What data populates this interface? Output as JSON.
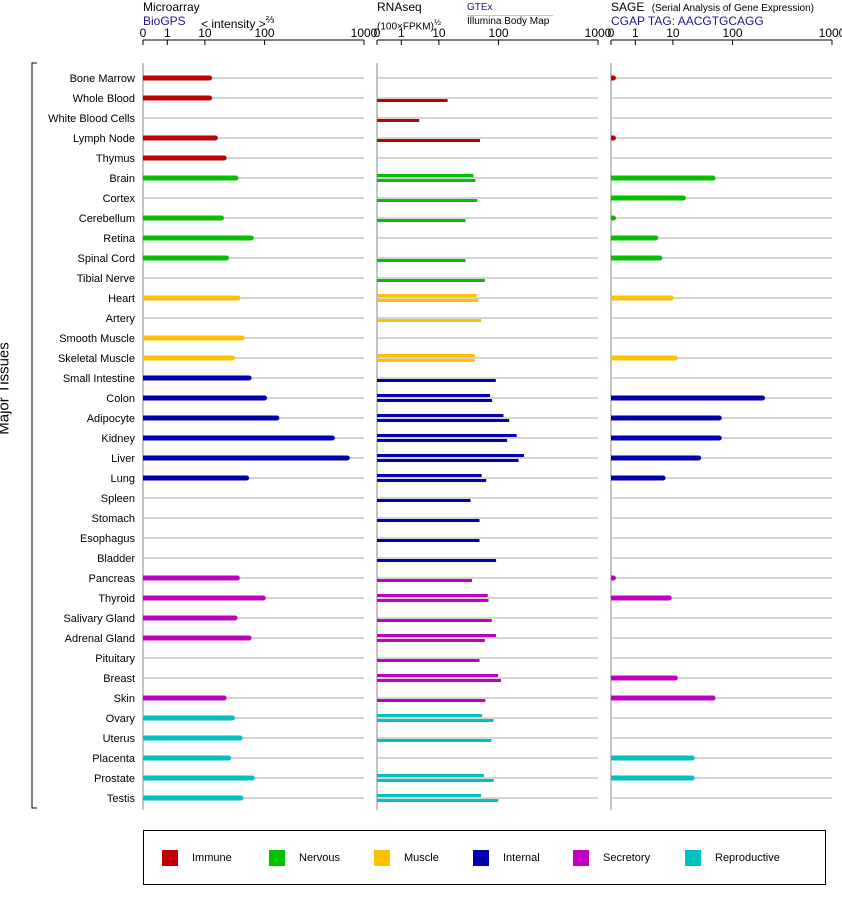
{
  "headers": {
    "microarray": {
      "title": "Microarray",
      "source": "BioGPS",
      "metric_prefix": "< intensity >",
      "metric_exp": "⅔"
    },
    "rnaseq": {
      "title": "RNAseq",
      "source": "GTEx",
      "metric_prefix": "(100×FPKM)",
      "metric_exp": "½",
      "source2": "Illumina Body Map"
    },
    "sage": {
      "title": "SAGE",
      "subtitle": "(Serial Analysis of Gene Expression)",
      "source": "CGAP",
      "tag": "TAG: AACGTGCAGG"
    }
  },
  "y_axis_label": "Major Tissues",
  "colors": {
    "Immune": "#c00000",
    "Nervous": "#00c000",
    "Muscle": "#ffc000",
    "Internal": "#0000b0",
    "Secretory": "#c000c0",
    "Reproductive": "#00c0c0"
  },
  "legend": [
    {
      "label": "Immune",
      "color": "#c00000"
    },
    {
      "label": "Nervous",
      "color": "#00c000"
    },
    {
      "label": "Muscle",
      "color": "#ffc000"
    },
    {
      "label": "Internal",
      "color": "#0000b0"
    },
    {
      "label": "Secretory",
      "color": "#c000c0"
    },
    {
      "label": "Reproductive",
      "color": "#00c0c0"
    }
  ],
  "chart_data": {
    "type": "bar",
    "orientation": "horizontal",
    "x_ticks": [
      "0",
      "1",
      "10",
      "100",
      "1000"
    ],
    "tick_values": [
      0,
      1,
      10,
      100,
      1000
    ],
    "xlim": [
      0,
      1000
    ],
    "panels": [
      "Microarray",
      "RNAseq",
      "SAGE"
    ],
    "tissues": [
      {
        "name": "Bone Marrow",
        "group": "Immune",
        "microarray": [
          12
        ],
        "rnaseq": [],
        "sage": [
          0.1
        ]
      },
      {
        "name": "Whole Blood",
        "group": "Immune",
        "microarray": [
          12
        ],
        "rnaseq": [
          14
        ],
        "sage": []
      },
      {
        "name": "White Blood Cells",
        "group": "Immune",
        "microarray": [],
        "rnaseq": [
          3
        ],
        "sage": []
      },
      {
        "name": "Lymph Node",
        "group": "Immune",
        "microarray": [
          15
        ],
        "rnaseq": [
          49
        ],
        "sage": [
          0.1
        ]
      },
      {
        "name": "Thymus",
        "group": "Immune",
        "microarray": [
          21
        ],
        "rnaseq": [],
        "sage": []
      },
      {
        "name": "Brain",
        "group": "Nervous",
        "microarray": [
          33
        ],
        "rnaseq": [
          38,
          41
        ],
        "sage": [
          47
        ]
      },
      {
        "name": "Cortex",
        "group": "Nervous",
        "microarray": [],
        "rnaseq": [
          44
        ],
        "sage": [
          15
        ]
      },
      {
        "name": "Cerebellum",
        "group": "Nervous",
        "microarray": [
          19
        ],
        "rnaseq": [
          28
        ],
        "sage": [
          0.1
        ]
      },
      {
        "name": "Retina",
        "group": "Nervous",
        "microarray": [
          60
        ],
        "rnaseq": [],
        "sage": [
          3.5
        ]
      },
      {
        "name": "Spinal Cord",
        "group": "Nervous",
        "microarray": [
          23
        ],
        "rnaseq": [
          28
        ],
        "sage": [
          4.5
        ]
      },
      {
        "name": "Tibial Nerve",
        "group": "Nervous",
        "microarray": [],
        "rnaseq": [
          59
        ],
        "sage": []
      },
      {
        "name": "Heart",
        "group": "Muscle",
        "microarray": [
          36
        ],
        "rnaseq": [
          43,
          46
        ],
        "sage": [
          9
        ]
      },
      {
        "name": "Artery",
        "group": "Muscle",
        "microarray": [],
        "rnaseq": [
          51
        ],
        "sage": []
      },
      {
        "name": "Smooth Muscle",
        "group": "Muscle",
        "microarray": [
          42
        ],
        "rnaseq": [],
        "sage": []
      },
      {
        "name": "Skeletal Muscle",
        "group": "Muscle",
        "microarray": [
          29
        ],
        "rnaseq": [
          40,
          40
        ],
        "sage": [
          11
        ]
      },
      {
        "name": "Small Intestine",
        "group": "Internal",
        "microarray": [
          55
        ],
        "rnaseq": [
          90
        ],
        "sage": []
      },
      {
        "name": "Colon",
        "group": "Internal",
        "microarray": [
          100
        ],
        "rnaseq": [
          72,
          78
        ],
        "sage": [
          200
        ]
      },
      {
        "name": "Adipocyte",
        "group": "Internal",
        "microarray": [
          133
        ],
        "rnaseq": [
          112,
          128
        ],
        "sage": [
          60
        ]
      },
      {
        "name": "Kidney",
        "group": "Internal",
        "microarray": [
          480
        ],
        "rnaseq": [
          152,
          122
        ],
        "sage": [
          60
        ]
      },
      {
        "name": "Liver",
        "group": "Internal",
        "microarray": [
          680
        ],
        "rnaseq": [
          180,
          159
        ],
        "sage": [
          27
        ]
      },
      {
        "name": "Lung",
        "group": "Internal",
        "microarray": [
          50
        ],
        "rnaseq": [
          52,
          62
        ],
        "sage": [
          5.5
        ]
      },
      {
        "name": "Spleen",
        "group": "Internal",
        "microarray": [],
        "rnaseq": [
          34
        ],
        "sage": []
      },
      {
        "name": "Stomach",
        "group": "Internal",
        "microarray": [],
        "rnaseq": [
          48
        ],
        "sage": []
      },
      {
        "name": "Esophagus",
        "group": "Internal",
        "microarray": [],
        "rnaseq": [
          48
        ],
        "sage": []
      },
      {
        "name": "Bladder",
        "group": "Internal",
        "microarray": [],
        "rnaseq": [
          91
        ],
        "sage": []
      },
      {
        "name": "Pancreas",
        "group": "Secretory",
        "microarray": [
          35
        ],
        "rnaseq": [
          36
        ],
        "sage": [
          0.1
        ]
      },
      {
        "name": "Thyroid",
        "group": "Secretory",
        "microarray": [
          95
        ],
        "rnaseq": [
          66,
          68
        ],
        "sage": [
          8
        ]
      },
      {
        "name": "Salivary Gland",
        "group": "Secretory",
        "microarray": [
          32
        ],
        "rnaseq": [
          77
        ],
        "sage": []
      },
      {
        "name": "Adrenal Gland",
        "group": "Secretory",
        "microarray": [
          55
        ],
        "rnaseq": [
          91,
          59
        ],
        "sage": []
      },
      {
        "name": "Pituitary",
        "group": "Secretory",
        "microarray": [],
        "rnaseq": [
          48
        ],
        "sage": []
      },
      {
        "name": "Breast",
        "group": "Secretory",
        "microarray": [],
        "rnaseq": [
          98,
          106
        ],
        "sage": [
          11
        ]
      },
      {
        "name": "Skin",
        "group": "Secretory",
        "microarray": [
          21
        ],
        "rnaseq": [
          60
        ],
        "sage": [
          47
        ]
      },
      {
        "name": "Ovary",
        "group": "Reproductive",
        "microarray": [
          29
        ],
        "rnaseq": [
          53,
          82
        ],
        "sage": []
      },
      {
        "name": "Uterus",
        "group": "Reproductive",
        "microarray": [
          39
        ],
        "rnaseq": [
          76
        ],
        "sage": []
      },
      {
        "name": "Placenta",
        "group": "Reproductive",
        "microarray": [
          25
        ],
        "rnaseq": [],
        "sage": [
          21
        ]
      },
      {
        "name": "Prostate",
        "group": "Reproductive",
        "microarray": [
          62
        ],
        "rnaseq": [
          57,
          83
        ],
        "sage": [
          21
        ]
      },
      {
        "name": "Testis",
        "group": "Reproductive",
        "microarray": [
          40
        ],
        "rnaseq": [
          51,
          99
        ],
        "sage": []
      }
    ]
  }
}
